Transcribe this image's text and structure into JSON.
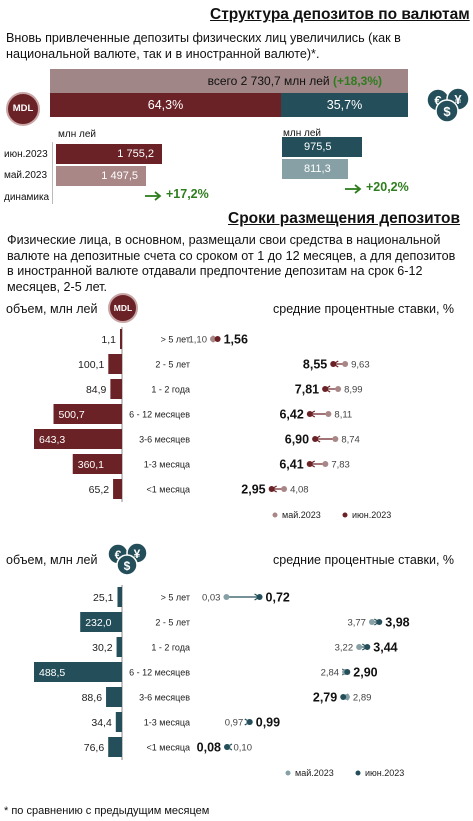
{
  "section1": {
    "title": "Структура депозитов по валютам",
    "description": "Вновь привлеченные депозиты физических лиц увеличились (как в национальной валюте, так и в иностранной валюте)*.",
    "total_label": "всего 2 730,7 млн лей ",
    "total_change": "(+18,3%)",
    "share_mdl": "64,3%",
    "share_fx": "35,7%",
    "mdl_badge": "MDL",
    "unit_mdl": "млн лей",
    "unit_fx": "млн лей",
    "row_labels": [
      "июн.2023",
      "май.2023",
      "динамика"
    ],
    "mdl_values": [
      "1 755,2",
      "1 497,5"
    ],
    "fx_values": [
      "975,5",
      "811,3"
    ],
    "mdl_change": "+17,2%",
    "fx_change": "+20,2%",
    "colors": {
      "mdl_dark": "#6b2226",
      "mdl_light": "#a98787",
      "fx_dark": "#244f5a",
      "fx_light": "#86a0a6",
      "total_bar": "#a08686",
      "green": "#2e7d1e"
    }
  },
  "section2": {
    "title": "Сроки размещения депозитов",
    "description": "Физические лица, в основном, размещали свои средства в национальной валюте на депозитные счета со сроком от 1 до 12 месяцев, а для депозитов в иностранной валюте отдавали предпочтение депозитам на срок 6-12 месяцев, 2-5 лет."
  },
  "chart_data": [
    {
      "type": "bar",
      "currency": "MDL",
      "volume_label": "объем, млн лей",
      "categories": [
        "> 5 лет",
        "2 - 5 лет",
        "1 - 2 года",
        "6 - 12 месяцев",
        "3-6 месяцев",
        "1-3 месяца",
        "<1 месяца"
      ],
      "volume_labels": [
        "1,1",
        "100,1",
        "84,9",
        "500,7",
        "643,3",
        "360,1",
        "65,2"
      ],
      "volumes": [
        1.1,
        100.1,
        84.9,
        500.7,
        643.3,
        360.1,
        65.2
      ],
      "rates_label": "средние процентные ставки, %",
      "series": [
        {
          "name": "май.2023",
          "values": [
            1.1,
            9.63,
            8.99,
            8.11,
            8.74,
            7.83,
            4.08
          ],
          "labels": [
            "1,10",
            "9,63",
            "8,99",
            "8,11",
            "8,74",
            "7,83",
            "4,08"
          ]
        },
        {
          "name": "июн.2023",
          "values": [
            1.56,
            8.55,
            7.81,
            6.42,
            6.9,
            6.41,
            2.95
          ],
          "labels": [
            "1,56",
            "8,55",
            "7,81",
            "6,42",
            "6,90",
            "6,41",
            "2,95"
          ]
        }
      ],
      "colors": {
        "bar": "#6b2226",
        "may": "#a98787",
        "jun": "#6b2226"
      }
    },
    {
      "type": "bar",
      "currency": "FX",
      "volume_label": "объем, млн лей",
      "categories": [
        "> 5 лет",
        "2 - 5 лет",
        "1 - 2 года",
        "6 - 12 месяцев",
        "3-6 месяцев",
        "1-3 месяца",
        "<1 месяца"
      ],
      "volume_labels": [
        "25,1",
        "232,0",
        "30,2",
        "488,5",
        "88,6",
        "34,4",
        "76,6"
      ],
      "volumes": [
        25.1,
        232.0,
        30.2,
        488.5,
        88.6,
        34.4,
        76.6
      ],
      "rates_label": "средние процентные ставки, %",
      "series": [
        {
          "name": "май.2023",
          "values": [
            0.03,
            3.77,
            3.22,
            2.84,
            2.89,
            0.97,
            0.1
          ],
          "labels": [
            "0,03",
            "3,77",
            "3,22",
            "2,84",
            "2,89",
            "0,97",
            "0,10"
          ]
        },
        {
          "name": "июн.2023",
          "values": [
            0.72,
            3.98,
            3.44,
            2.9,
            2.79,
            0.99,
            0.08
          ],
          "labels": [
            "0,72",
            "3,98",
            "3,44",
            "2,90",
            "2,79",
            "0,99",
            "0,08"
          ]
        }
      ],
      "colors": {
        "bar": "#244f5a",
        "may": "#86a0a6",
        "jun": "#244f5a"
      }
    }
  ],
  "footnote": "* по сравнению с предыдущим месяцем"
}
